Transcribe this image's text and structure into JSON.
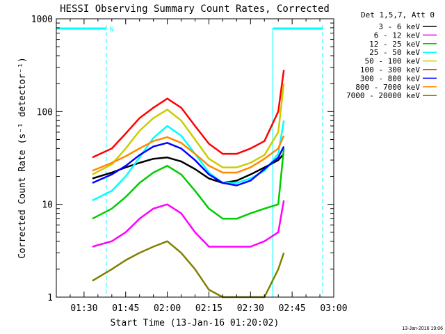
{
  "chart_data": {
    "type": "line",
    "title": "HESSI Observing Summary Count Rates, Corrected",
    "xlabel": "Start Time (13-Jan-16 01:20:02)",
    "ylabel": "Corrected Count Rate (s⁻¹ detector⁻¹)",
    "yscale": "log",
    "ylim": [
      1,
      1000
    ],
    "xlim": [
      "01:20",
      "03:00"
    ],
    "x_ticks": [
      "01:30",
      "01:45",
      "02:00",
      "02:15",
      "02:30",
      "02:45",
      "03:00"
    ],
    "y_ticks": [
      "1",
      "10",
      "100",
      "1000"
    ],
    "legend_title": "Det 1,5,7, Att 0",
    "legend_position": "right",
    "footer_date": "13-Jan-2016 19:06",
    "flags": [
      {
        "start": "01:20",
        "end": "01:38",
        "label": "N"
      },
      {
        "start": "02:38",
        "end": "02:56",
        "label": ""
      }
    ],
    "x": [
      "01:33",
      "01:40",
      "01:45",
      "01:50",
      "01:55",
      "02:00",
      "02:05",
      "02:10",
      "02:15",
      "02:20",
      "02:25",
      "02:30",
      "02:35",
      "02:40",
      "02:42"
    ],
    "series": [
      {
        "name": "3 - 6 keV",
        "color": "#000000",
        "values": [
          19,
          22,
          25,
          28,
          31,
          32,
          29,
          24,
          19,
          17,
          18,
          21,
          25,
          30,
          35
        ]
      },
      {
        "name": "6 - 12 keV",
        "color": "#ff00ff",
        "values": [
          3.5,
          4,
          5,
          7,
          9,
          10,
          8,
          5,
          3.5,
          3.5,
          3.5,
          3.5,
          4,
          5,
          11
        ]
      },
      {
        "name": "12 - 25 keV",
        "color": "#00cc00",
        "values": [
          7,
          9,
          12,
          17,
          22,
          26,
          21,
          14,
          9,
          7,
          7,
          8,
          9,
          10,
          40
        ]
      },
      {
        "name": "25 - 50 keV",
        "color": "#00ffff",
        "values": [
          11,
          14,
          20,
          32,
          52,
          70,
          55,
          35,
          22,
          17,
          17,
          19,
          23,
          35,
          80
        ]
      },
      {
        "name": "50 - 100 keV",
        "color": "#cccc00",
        "values": [
          21,
          27,
          40,
          62,
          85,
          105,
          80,
          50,
          31,
          25,
          25,
          28,
          34,
          60,
          200
        ]
      },
      {
        "name": "100 - 300 keV",
        "color": "#ff0000",
        "values": [
          32,
          40,
          58,
          85,
          110,
          138,
          110,
          70,
          45,
          35,
          35,
          40,
          48,
          100,
          280
        ]
      },
      {
        "name": "300 - 800 keV",
        "color": "#0000ff",
        "values": [
          17,
          21,
          26,
          34,
          42,
          46,
          40,
          30,
          21,
          17,
          16,
          18,
          24,
          32,
          42
        ]
      },
      {
        "name": "800 - 7000 keV",
        "color": "#ff8800",
        "values": [
          23,
          28,
          33,
          40,
          48,
          53,
          46,
          35,
          26,
          22,
          22,
          25,
          31,
          40,
          55
        ]
      },
      {
        "name": "7000 - 20000 keV",
        "color": "#808000",
        "values": [
          1.5,
          2,
          2.5,
          3,
          3.5,
          4,
          3,
          2,
          1.2,
          1,
          1,
          1,
          1,
          2,
          3
        ]
      }
    ]
  }
}
